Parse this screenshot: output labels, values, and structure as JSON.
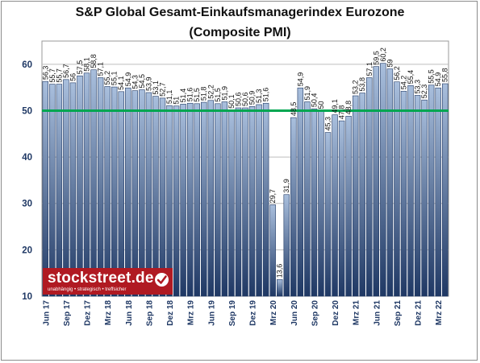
{
  "header": {
    "title": "S&P Global Gesamt-Einkaufsmanagerindex Eurozone",
    "subtitle": "(Composite PMI)"
  },
  "logo": {
    "name": "stockstreet.de",
    "tagline": "unabhängig • strategisch • treffsicher"
  },
  "colors": {
    "bar_fill_top": "#a9bfdd",
    "bar_fill_bottom": "#1f3864",
    "reference_line": "#00a651",
    "axis_text": "#1f3864",
    "logo_background": "#b01a22"
  },
  "chart_data": {
    "type": "bar",
    "title": "S&P Global Gesamt-Einkaufsmanagerindex Eurozone",
    "subtitle": "(Composite PMI)",
    "ylim": [
      10,
      65
    ],
    "yticks": [
      10,
      20,
      30,
      40,
      50,
      60
    ],
    "grid": true,
    "reference_line": 50,
    "categories": [
      "Jun 17",
      "Jul 17",
      "Aug 17",
      "Sep 17",
      "Okt 17",
      "Nov 17",
      "Dez 17",
      "Jan 18",
      "Feb 18",
      "Mrz 18",
      "Apr 18",
      "Mai 18",
      "Jun 18",
      "Jul 18",
      "Aug 18",
      "Sep 18",
      "Okt 18",
      "Nov 18",
      "Dez 18",
      "Jan 19",
      "Feb 19",
      "Mrz 19",
      "Apr 19",
      "Mai 19",
      "Jun 19",
      "Jul 19",
      "Aug 19",
      "Sep 19",
      "Okt 19",
      "Nov 19",
      "Dez 19",
      "Jan 20",
      "Feb 20",
      "Mrz 20",
      "Apr 20",
      "Mai 20",
      "Jun 20",
      "Jul 20",
      "Aug 20",
      "Sep 20",
      "Okt 20",
      "Nov 20",
      "Dez 20",
      "Jan 21",
      "Feb 21",
      "Mrz 21",
      "Apr 21",
      "Mai 21",
      "Jun 21",
      "Jul 21",
      "Aug 21",
      "Sep 21",
      "Okt 21",
      "Nov 21",
      "Dez 21",
      "Jan 22",
      "Feb 22",
      "Mrz 22",
      "Apr 22"
    ],
    "xtick_labels": [
      "Jun 17",
      "Sep 17",
      "Dez 17",
      "Mrz 18",
      "Jun 18",
      "Sep 18",
      "Dez 18",
      "Mrz 19",
      "Jun 19",
      "Sep 19",
      "Dez 19",
      "Mrz 20",
      "Jun 20",
      "Sep 20",
      "Dez 20",
      "Mrz 21",
      "Jun 21",
      "Sep 21",
      "Dez 21",
      "Mrz 22"
    ],
    "values": [
      56.3,
      55.7,
      55.7,
      56.7,
      56.0,
      57.5,
      58.1,
      58.8,
      57.1,
      55.2,
      55.1,
      54.1,
      54.9,
      54.3,
      54.5,
      53.9,
      53.1,
      52.7,
      51.1,
      51.0,
      51.4,
      51.6,
      51.5,
      51.8,
      52.2,
      51.5,
      51.9,
      50.1,
      50.6,
      50.6,
      50.9,
      51.3,
      51.6,
      29.7,
      13.6,
      31.9,
      48.5,
      54.9,
      51.9,
      50.4,
      50.0,
      45.3,
      49.1,
      47.8,
      48.8,
      53.2,
      53.8,
      57.1,
      59.5,
      60.2,
      59.0,
      56.2,
      54.2,
      55.4,
      53.3,
      52.3,
      55.5,
      54.9,
      55.8
    ],
    "value_labels": [
      "56,3",
      "55,7",
      "55,7",
      "56,7",
      "56",
      "57,5",
      "58,1",
      "58,8",
      "57,1",
      "55,2",
      "55,1",
      "54,1",
      "54,9",
      "54,3",
      "54,5",
      "53,9",
      "53,1",
      "52,7",
      "51,1",
      "51",
      "51,4",
      "51,6",
      "51,5",
      "51,8",
      "52,2",
      "51,5",
      "51,9",
      "50,1",
      "50,6",
      "50,6",
      "50,9",
      "51,3",
      "51,6",
      "29,7",
      "13,6",
      "31,9",
      "48,5",
      "54,9",
      "51,9",
      "50,4",
      "50",
      "45,3",
      "49,1",
      "47,8",
      "48,8",
      "53,2",
      "53,8",
      "57,1",
      "59,5",
      "60,2",
      "59",
      "56,2",
      "54,2",
      "55,4",
      "53,3",
      "52,3",
      "55,5",
      "54,9",
      "55,8"
    ]
  }
}
